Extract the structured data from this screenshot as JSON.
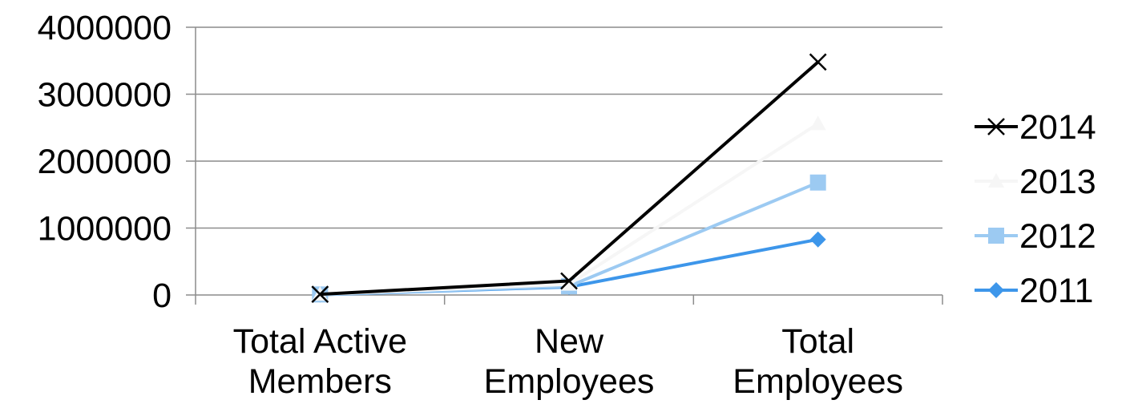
{
  "chart_data": {
    "type": "line",
    "categories": [
      [
        "Total Active",
        "Members"
      ],
      [
        "New",
        "Employees"
      ],
      [
        "Total",
        "Employees"
      ]
    ],
    "yticks": [
      "0",
      "1000000",
      "2000000",
      "3000000",
      "4000000"
    ],
    "ylim": [
      0,
      4000000
    ],
    "grid": true,
    "legend_position": "right",
    "series": [
      {
        "name": "2014",
        "values": [
          10000,
          210000,
          3480000
        ],
        "color": "#000000",
        "marker": "x"
      },
      {
        "name": "2013",
        "values": [
          10000,
          160000,
          2560000
        ],
        "color": "#f6f6f6",
        "marker": "triangle"
      },
      {
        "name": "2012",
        "values": [
          8000,
          130000,
          1680000
        ],
        "color": "#9ccaf2",
        "marker": "square"
      },
      {
        "name": "2011",
        "values": [
          5000,
          120000,
          830000
        ],
        "color": "#3d96ea",
        "marker": "diamond"
      }
    ]
  }
}
